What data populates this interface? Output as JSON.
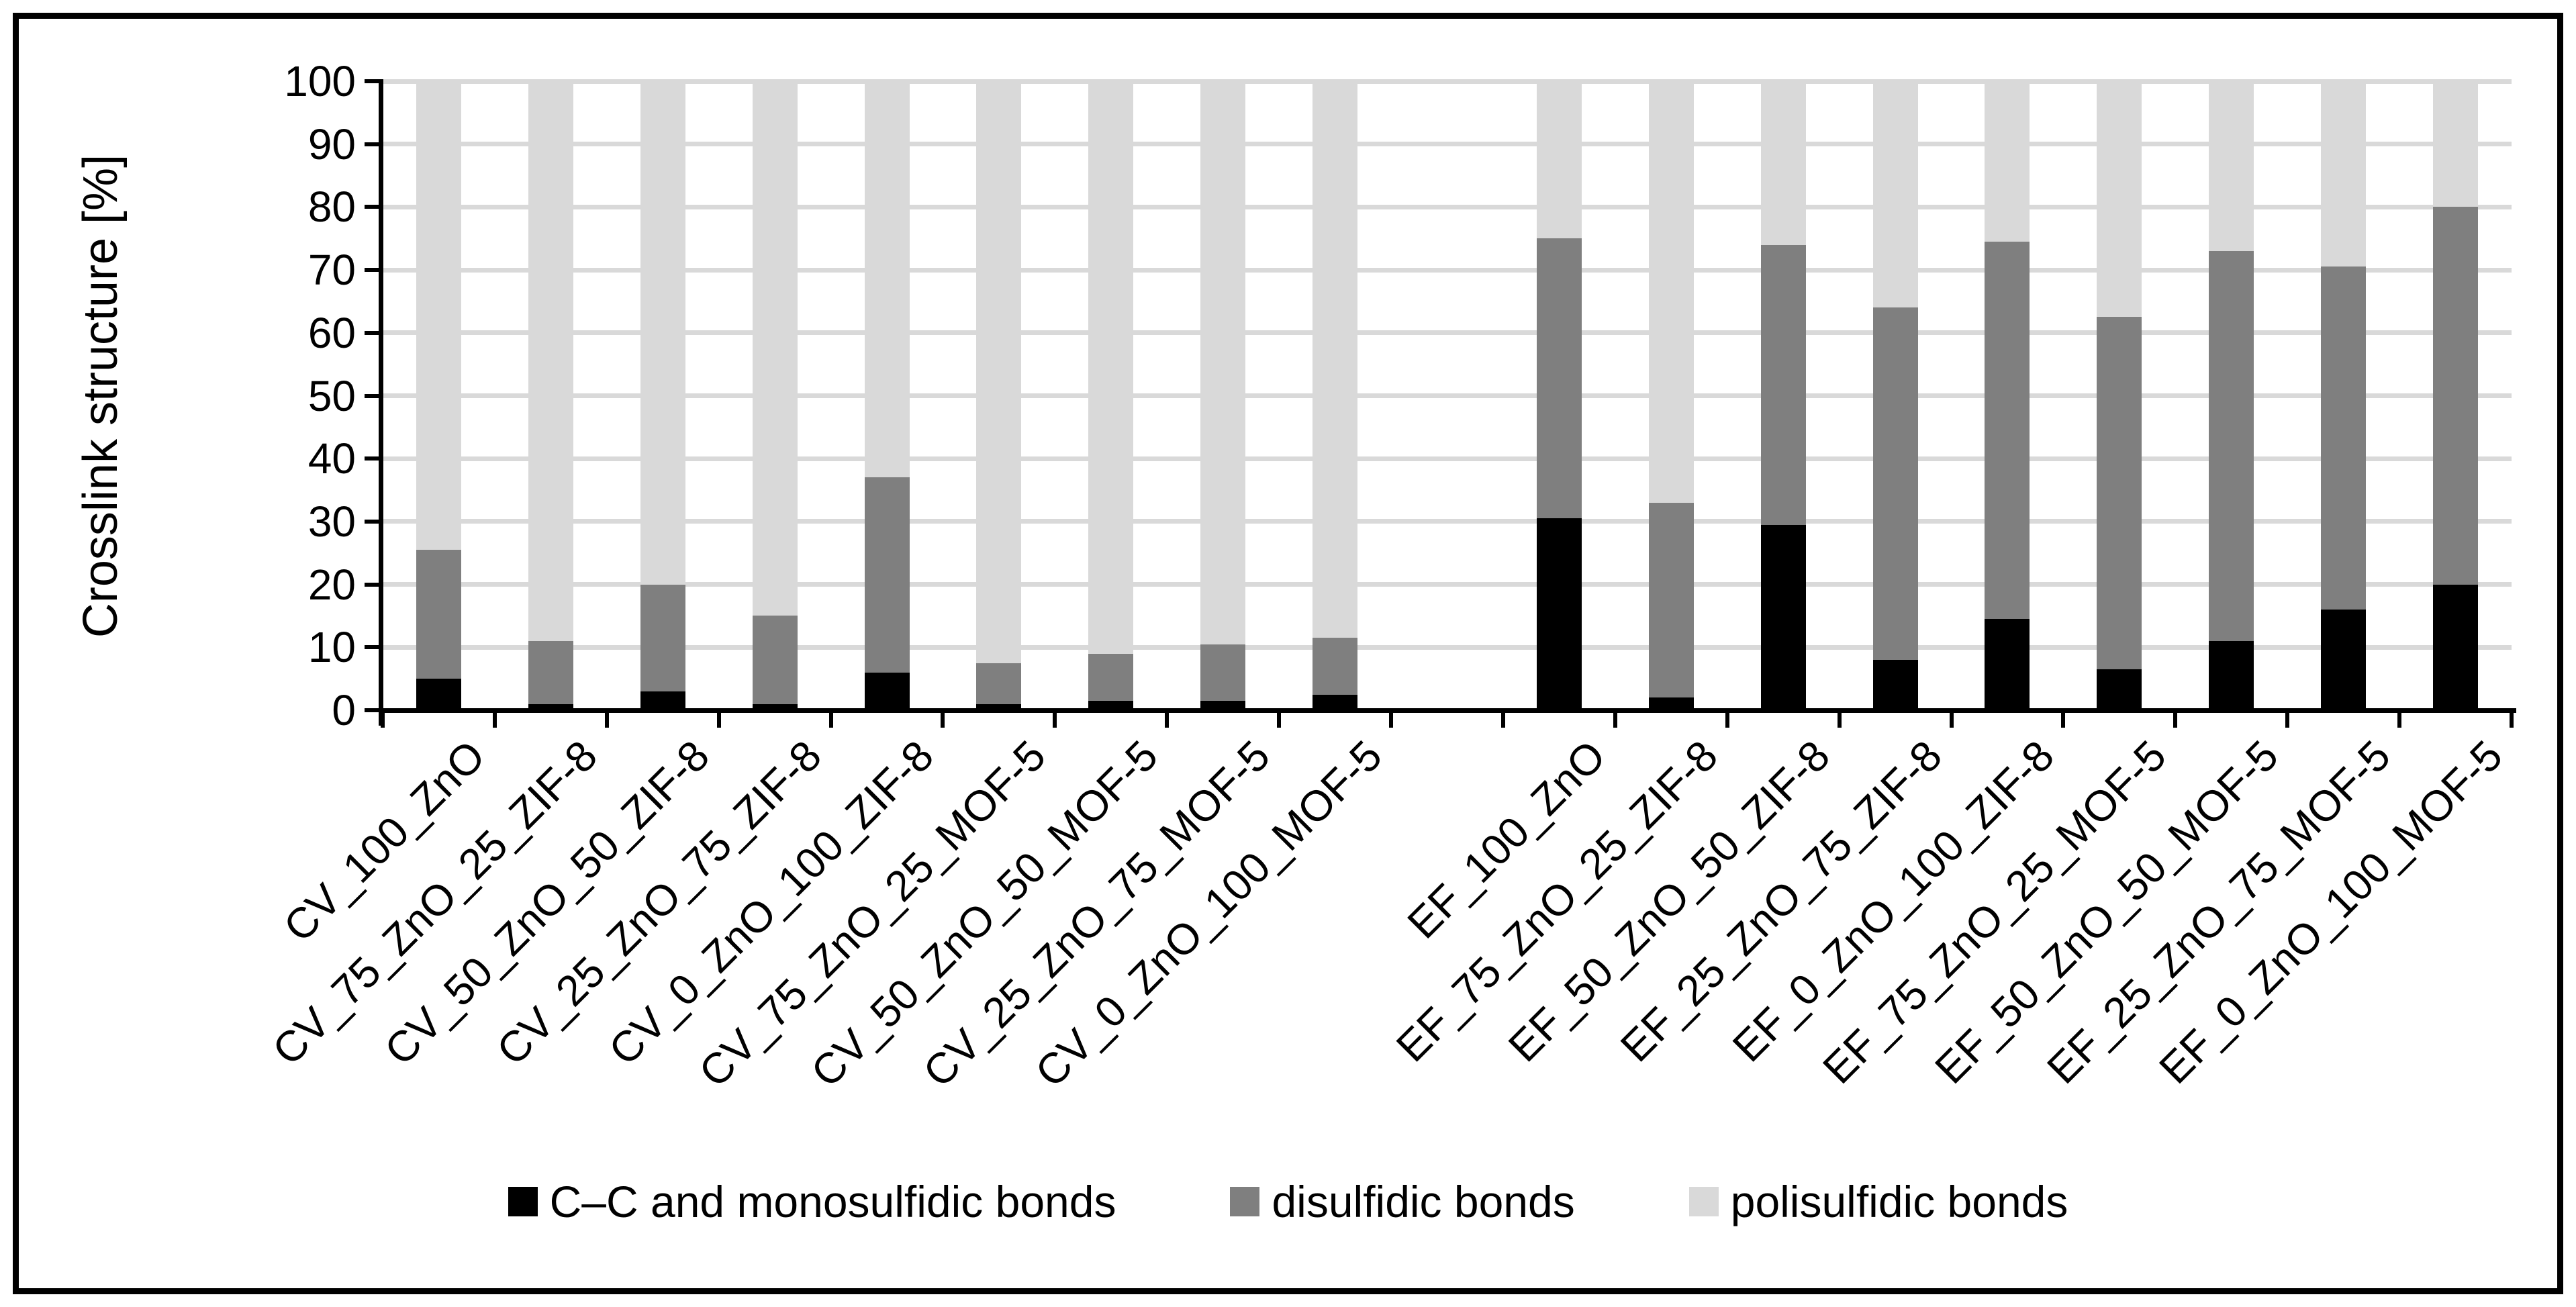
{
  "figure": {
    "ylabel": "Crosslink structure [%]"
  },
  "legend": [
    {
      "label": "C–C and monosulfidic bonds",
      "color": "#000000"
    },
    {
      "label": "disulfidic bonds",
      "color": "#7F7F7F"
    },
    {
      "label": "polisulfidic bonds",
      "color": "#D9D9D9"
    }
  ],
  "colors": {
    "black_series": "#000000",
    "dark_gray_series": "#7F7F7F",
    "light_gray_series": "#D9D9D9",
    "gridline": "#D9D9D9",
    "axis": "#000000"
  },
  "chart_data": {
    "type": "bar",
    "stacked": true,
    "title": "",
    "xlabel": "",
    "ylabel": "Crosslink structure [%]",
    "ylim": [
      0,
      100
    ],
    "y_ticks": [
      0,
      10,
      20,
      30,
      40,
      50,
      60,
      70,
      80,
      90,
      100
    ],
    "grid": true,
    "legend_position": "bottom",
    "group_split_index": 9,
    "categories": [
      "CV_100_ZnO",
      "CV_75_ZnO_25_ZIF-8",
      "CV_50_ZnO_50_ZIF-8",
      "CV_25_ZnO_75_ZIF-8",
      "CV_0_ZnO_100_ZIF-8",
      "CV_75_ZnO_25_MOF-5",
      "CV_50_ZnO_50_MOF-5",
      "CV_25_ZnO_75_MOF-5",
      "CV_0_ZnO_100_MOF-5",
      "EF_100_ZnO",
      "EF_75_ZnO_25_ZIF-8",
      "EF_50_ZnO_50_ZIF-8",
      "EF_25_ZnO_75_ZIF-8",
      "EF_0_ZnO_100_ZIF-8",
      "EF_75_ZnO_25_MOF-5",
      "EF_50_ZnO_50_MOF-5",
      "EF_25_ZnO_75_MOF-5",
      "EF_0_ZnO_100_MOF-5"
    ],
    "series": [
      {
        "name": "C–C and monosulfidic bonds",
        "color": "#000000",
        "values": [
          5,
          1,
          3,
          1,
          6,
          1,
          1.5,
          1.5,
          2.5,
          30.5,
          2,
          29.5,
          8,
          14.5,
          6.5,
          11,
          16,
          20
        ]
      },
      {
        "name": "disulfidic bonds",
        "color": "#7F7F7F",
        "values": [
          20.5,
          10,
          17,
          14,
          31,
          6.5,
          7.5,
          9,
          9,
          44.5,
          31,
          44.5,
          56,
          60,
          56,
          62,
          54.5,
          60
        ]
      },
      {
        "name": "polisulfidic bonds",
        "color": "#D9D9D9",
        "values": [
          74.5,
          89,
          80,
          85,
          63,
          92.5,
          91,
          89.5,
          88.5,
          25,
          67,
          26,
          36,
          25.5,
          37.5,
          27,
          29.5,
          20
        ]
      }
    ]
  }
}
